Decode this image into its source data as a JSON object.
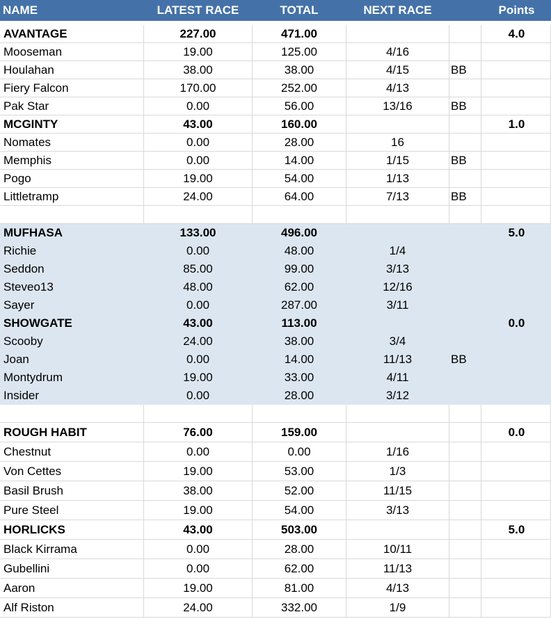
{
  "headers": {
    "name": "NAME",
    "latest": "LATEST RACE",
    "total": "TOTAL",
    "next": "NEXT RACE",
    "extra": "",
    "points": "Points"
  },
  "rows": [
    {
      "type": "team",
      "name": "AVANTAGE",
      "latest": "227.00",
      "total": "471.00",
      "next": "",
      "extra": "",
      "points": "4.0",
      "shade": false
    },
    {
      "type": "member",
      "name": "Mooseman",
      "latest": "19.00",
      "total": "125.00",
      "next": "4/16",
      "extra": "",
      "points": "",
      "shade": false
    },
    {
      "type": "member",
      "name": "Houlahan",
      "latest": "38.00",
      "total": "38.00",
      "next": "4/15",
      "extra": "BB",
      "points": "",
      "shade": false
    },
    {
      "type": "member",
      "name": "Fiery Falcon",
      "latest": "170.00",
      "total": "252.00",
      "next": "4/13",
      "extra": "",
      "points": "",
      "shade": false
    },
    {
      "type": "member",
      "name": "Pak Star",
      "latest": "0.00",
      "total": "56.00",
      "next": "13/16",
      "extra": "BB",
      "points": "",
      "shade": false
    },
    {
      "type": "team",
      "name": "MCGINTY",
      "latest": "43.00",
      "total": "160.00",
      "next": "",
      "extra": "",
      "points": "1.0",
      "shade": false
    },
    {
      "type": "member",
      "name": "Nomates",
      "latest": "0.00",
      "total": "28.00",
      "next": "16",
      "extra": "",
      "points": "",
      "shade": false
    },
    {
      "type": "member",
      "name": "Memphis",
      "latest": "0.00",
      "total": "14.00",
      "next": "1/15",
      "extra": "BB",
      "points": "",
      "shade": false
    },
    {
      "type": "member",
      "name": "Pogo",
      "latest": "19.00",
      "total": "54.00",
      "next": "1/13",
      "extra": "",
      "points": "",
      "shade": false
    },
    {
      "type": "member",
      "name": "Littletramp",
      "latest": "24.00",
      "total": "64.00",
      "next": "7/13",
      "extra": "BB",
      "points": "",
      "shade": false
    },
    {
      "type": "blank",
      "name": "",
      "latest": "",
      "total": "",
      "next": "",
      "extra": "",
      "points": "",
      "shade": false
    },
    {
      "type": "team",
      "name": "MUFHASA",
      "latest": "133.00",
      "total": "496.00",
      "next": "",
      "extra": "",
      "points": "5.0",
      "shade": true
    },
    {
      "type": "member",
      "name": "Richie",
      "latest": "0.00",
      "total": "48.00",
      "next": "1/4",
      "extra": "",
      "points": "",
      "shade": true
    },
    {
      "type": "member",
      "name": "Seddon",
      "latest": "85.00",
      "total": "99.00",
      "next": "3/13",
      "extra": "",
      "points": "",
      "shade": true
    },
    {
      "type": "member",
      "name": "Steveo13",
      "latest": "48.00",
      "total": "62.00",
      "next": "12/16",
      "extra": "",
      "points": "",
      "shade": true
    },
    {
      "type": "member",
      "name": "Sayer",
      "latest": "0.00",
      "total": "287.00",
      "next": "3/11",
      "extra": "",
      "points": "",
      "shade": true
    },
    {
      "type": "team",
      "name": "SHOWGATE",
      "latest": "43.00",
      "total": "113.00",
      "next": "",
      "extra": "",
      "points": "0.0",
      "shade": true
    },
    {
      "type": "member",
      "name": "Scooby",
      "latest": "24.00",
      "total": "38.00",
      "next": "3/4",
      "extra": "",
      "points": "",
      "shade": true
    },
    {
      "type": "member",
      "name": "Joan",
      "latest": "0.00",
      "total": "14.00",
      "next": "11/13",
      "extra": "BB",
      "points": "",
      "shade": true
    },
    {
      "type": "member",
      "name": "Montydrum",
      "latest": "19.00",
      "total": "33.00",
      "next": "4/11",
      "extra": "",
      "points": "",
      "shade": true
    },
    {
      "type": "member",
      "name": "Insider",
      "latest": "0.00",
      "total": "28.00",
      "next": "3/12",
      "extra": "",
      "points": "",
      "shade": true
    },
    {
      "type": "blank",
      "name": "",
      "latest": "",
      "total": "",
      "next": "",
      "extra": "",
      "points": "",
      "shade": false
    },
    {
      "type": "team",
      "name": "ROUGH HABIT",
      "latest": "76.00",
      "total": "159.00",
      "next": "",
      "extra": "",
      "points": "0.0",
      "shade": false
    },
    {
      "type": "member",
      "name": "Chestnut",
      "latest": "0.00",
      "total": "0.00",
      "next": "1/16",
      "extra": "",
      "points": "",
      "shade": false
    },
    {
      "type": "member",
      "name": "Von Cettes",
      "latest": "19.00",
      "total": "53.00",
      "next": "1/3",
      "extra": "",
      "points": "",
      "shade": false
    },
    {
      "type": "member",
      "name": "Basil Brush",
      "latest": "38.00",
      "total": "52.00",
      "next": "11/15",
      "extra": "",
      "points": "",
      "shade": false
    },
    {
      "type": "member",
      "name": "Pure Steel",
      "latest": "19.00",
      "total": "54.00",
      "next": "3/13",
      "extra": "",
      "points": "",
      "shade": false
    },
    {
      "type": "team",
      "name": "HORLICKS",
      "latest": "43.00",
      "total": "503.00",
      "next": "",
      "extra": "",
      "points": "5.0",
      "shade": false
    },
    {
      "type": "member",
      "name": "Black Kirrama",
      "latest": "0.00",
      "total": "28.00",
      "next": "10/11",
      "extra": "",
      "points": "",
      "shade": false
    },
    {
      "type": "member",
      "name": "Gubellini",
      "latest": "0.00",
      "total": "62.00",
      "next": "11/13",
      "extra": "",
      "points": "",
      "shade": false
    },
    {
      "type": "member",
      "name": "Aaron",
      "latest": "19.00",
      "total": "81.00",
      "next": "4/13",
      "extra": "",
      "points": "",
      "shade": false
    },
    {
      "type": "member",
      "name": "Alf Riston",
      "latest": "24.00",
      "total": "332.00",
      "next": "1/9",
      "extra": "",
      "points": "",
      "shade": false
    }
  ]
}
